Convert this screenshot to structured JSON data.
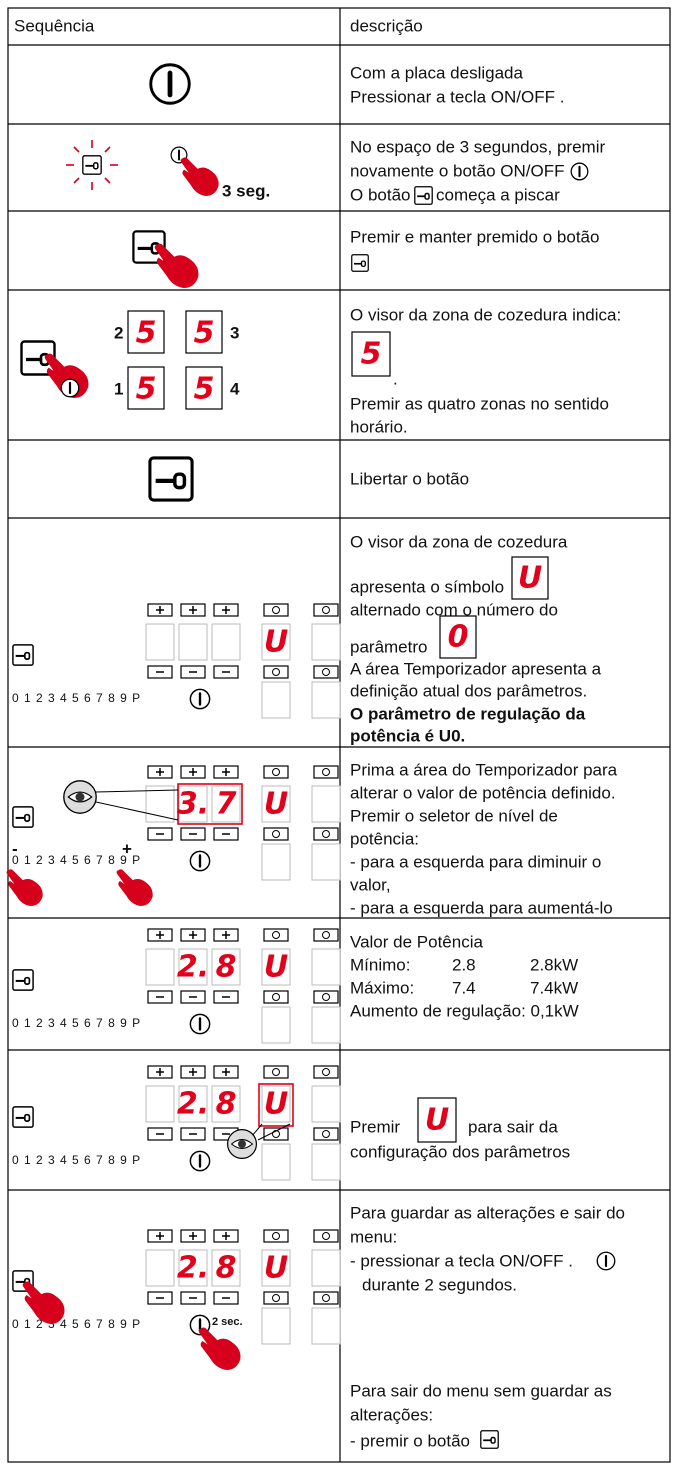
{
  "header": {
    "sequence": "Sequência",
    "description": "descrição"
  },
  "rows": [
    {
      "description": [
        "Com a placa desligada",
        "Pressionar a tecla ON/OFF ."
      ]
    },
    {
      "label": "3 seg.",
      "description": [
        "No espaço de 3 segundos, premir",
        "novamente o botão ON/OFF",
        "O botão",
        "começa a piscar"
      ]
    },
    {
      "description": [
        "Premir e manter premido o botão"
      ]
    },
    {
      "zones": [
        "2",
        "3",
        "1",
        "4"
      ],
      "display": "5",
      "description": [
        "O visor da zona de cozedura indica:",
        ".",
        "Premir as quatro zonas no sentido",
        "horário."
      ]
    },
    {
      "description": [
        "Libertar o botão"
      ]
    },
    {
      "panel": {
        "scale": "0 1 2 3 4 5 6 7 8 9 P",
        "zone": "U"
      },
      "symbols": [
        "U",
        "0"
      ],
      "description": [
        "O visor da zona de cozedura",
        "apresenta o símbolo",
        "alternado com o número do",
        "parâmetro",
        "A área Temporizador apresenta a",
        "definição atual dos parâmetros.",
        "O parâmetro de regulação da",
        "potência é U0."
      ]
    },
    {
      "panel": {
        "scale": "0 1 2 3 4 5 6 7 8 9 P",
        "timer": [
          "3.",
          "7"
        ],
        "zone": "U",
        "minus": "-",
        "plus": "+"
      },
      "description": [
        "Prima a área do Temporizador para",
        "alterar o valor de potência definido.",
        "Premir o seletor de nível de",
        "potência:",
        "- para a esquerda para diminuir o",
        "valor,",
        "- para a esquerda para aumentá-lo"
      ]
    },
    {
      "panel": {
        "scale": "0 1 2 3 4 5 6 7 8 9 P",
        "timer": [
          "2.",
          "8"
        ],
        "zone": "U"
      },
      "description": [
        "Valor de Potência",
        "Aumento de regulação: 0,1kW"
      ],
      "limits": [
        [
          "Mínimo:",
          "2.8",
          "2.8kW"
        ],
        [
          "Máximo:",
          "7.4",
          "7.4kW"
        ]
      ]
    },
    {
      "panel": {
        "scale": "0 1 2 3 4 5 6 7 8 9 P",
        "timer": [
          "2.",
          "8"
        ],
        "zone": "U"
      },
      "symbol": "U",
      "description": [
        "Premir",
        "para sair da",
        "configuração dos parâmetros"
      ]
    },
    {
      "panel": {
        "scale": "0 1 2 3 4 5 6 7 8 9 P",
        "timer": [
          "2.",
          "8"
        ],
        "zone": "U",
        "label": "2 sec."
      },
      "description": [
        "Para guardar as alterações e sair do",
        "menu:",
        "- pressionar a tecla ON/OFF .",
        "durante 2 segundos.",
        "Para sair do menu sem guardar as",
        "alterações:",
        "- premir o botão"
      ]
    }
  ]
}
